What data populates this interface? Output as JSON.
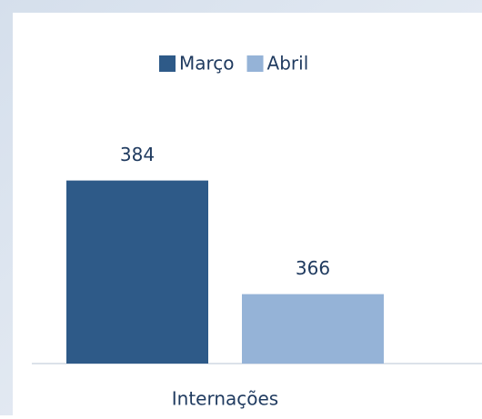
{
  "chart_data": {
    "type": "bar",
    "categories": [
      "Internações"
    ],
    "series": [
      {
        "name": "Março",
        "color": "#2e5a88",
        "values": [
          384
        ]
      },
      {
        "name": "Abril",
        "color": "#95b3d7",
        "values": [
          366
        ]
      }
    ],
    "ylim": [
      355,
      400
    ],
    "legend": "top"
  }
}
